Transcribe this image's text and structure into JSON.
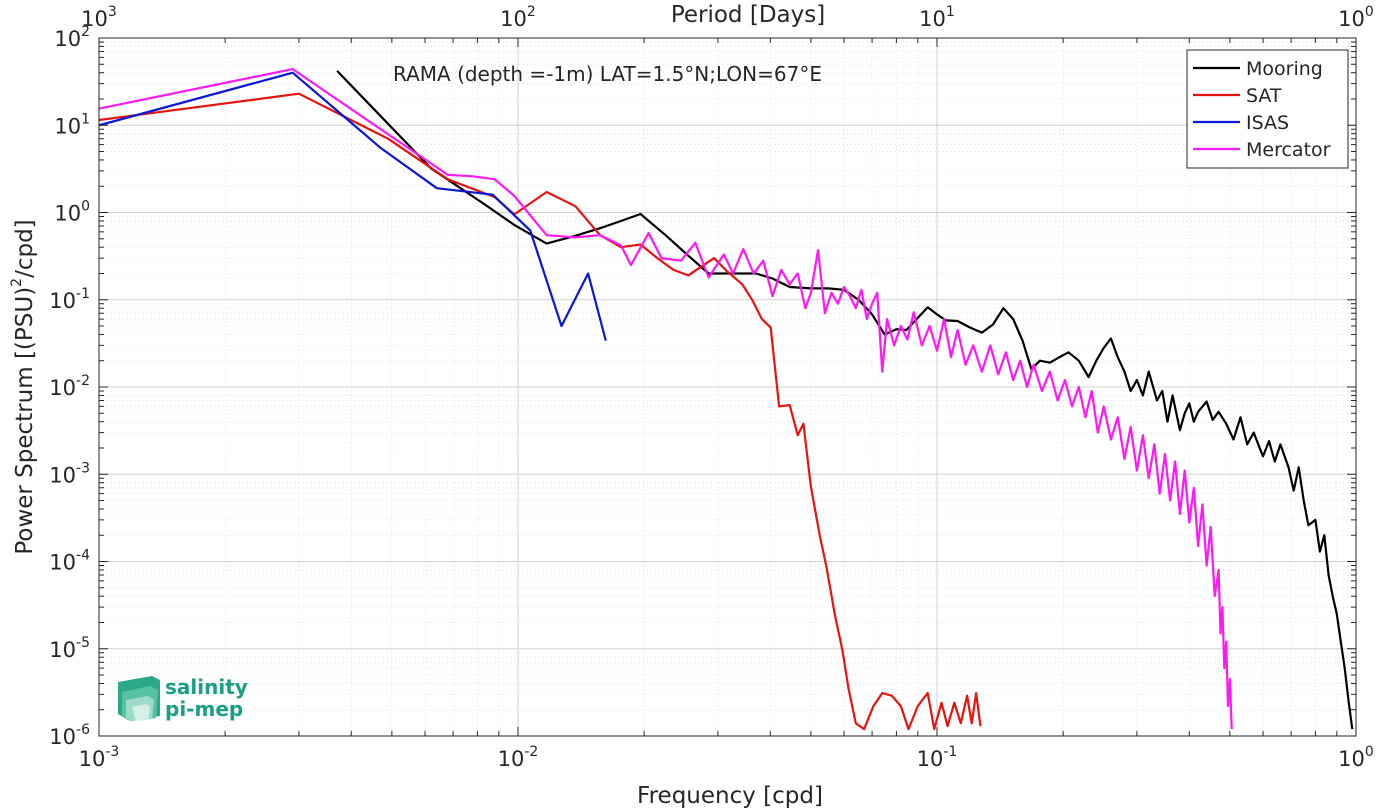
{
  "chart_data": {
    "type": "line",
    "title": "RAMA (depth =-1m) LAT=1.5°N;LON=67°E",
    "xlabel": "Frequency [cpd]",
    "ylabel_main": "Power Spectrum [(PSU)",
    "ylabel_sup": "2",
    "ylabel_tail": "/cpd]",
    "top_xlabel": "Period [Days]",
    "x_scale": "log",
    "y_scale": "log",
    "xlim": [
      0.001,
      1
    ],
    "ylim": [
      1e-06,
      100
    ],
    "grid": true,
    "legend_position": "top-right",
    "x_ticks": [
      {
        "base": "10",
        "exp": "-3",
        "value": 0.001
      },
      {
        "base": "10",
        "exp": "-2",
        "value": 0.01
      },
      {
        "base": "10",
        "exp": "-1",
        "value": 0.1
      },
      {
        "base": "10",
        "exp": "0",
        "value": 1
      }
    ],
    "top_ticks": [
      {
        "base": "10",
        "exp": "3",
        "value": 0.001
      },
      {
        "base": "10",
        "exp": "2",
        "value": 0.01
      },
      {
        "base": "10",
        "exp": "1",
        "value": 0.1
      },
      {
        "base": "10",
        "exp": "0",
        "value": 1
      }
    ],
    "y_ticks": [
      {
        "base": "10",
        "exp": "-6",
        "value": 1e-06
      },
      {
        "base": "10",
        "exp": "-5",
        "value": 1e-05
      },
      {
        "base": "10",
        "exp": "-4",
        "value": 0.0001
      },
      {
        "base": "10",
        "exp": "-3",
        "value": 0.001
      },
      {
        "base": "10",
        "exp": "-2",
        "value": 0.01
      },
      {
        "base": "10",
        "exp": "-1",
        "value": 0.1
      },
      {
        "base": "10",
        "exp": "0",
        "value": 1
      },
      {
        "base": "10",
        "exp": "1",
        "value": 10
      },
      {
        "base": "10",
        "exp": "2",
        "value": 100
      }
    ],
    "series": [
      {
        "name": "Mooring",
        "color": "#000000",
        "points": [
          [
            0.0037,
            42
          ],
          [
            0.0062,
            3.2
          ],
          [
            0.0083,
            1.25
          ],
          [
            0.0098,
            0.72
          ],
          [
            0.0117,
            0.44
          ],
          [
            0.0137,
            0.54
          ],
          [
            0.0157,
            0.66
          ],
          [
            0.0176,
            0.8
          ],
          [
            0.0196,
            0.96
          ],
          [
            0.0225,
            0.55
          ],
          [
            0.0255,
            0.32
          ],
          [
            0.0285,
            0.2
          ],
          [
            0.0313,
            0.2
          ],
          [
            0.0343,
            0.2
          ],
          [
            0.037,
            0.2
          ],
          [
            0.0405,
            0.175
          ],
          [
            0.0445,
            0.14
          ],
          [
            0.05,
            0.135
          ],
          [
            0.055,
            0.135
          ],
          [
            0.06,
            0.13
          ],
          [
            0.065,
            0.1
          ],
          [
            0.07,
            0.068
          ],
          [
            0.075,
            0.04
          ],
          [
            0.08,
            0.046
          ],
          [
            0.0845,
            0.045
          ],
          [
            0.09,
            0.062
          ],
          [
            0.095,
            0.082
          ],
          [
            0.1,
            0.068
          ],
          [
            0.105,
            0.058
          ],
          [
            0.112,
            0.057
          ],
          [
            0.12,
            0.048
          ],
          [
            0.128,
            0.042
          ],
          [
            0.136,
            0.052
          ],
          [
            0.144,
            0.08
          ],
          [
            0.152,
            0.06
          ],
          [
            0.16,
            0.034
          ],
          [
            0.168,
            0.016
          ],
          [
            0.176,
            0.02
          ],
          [
            0.186,
            0.019
          ],
          [
            0.196,
            0.022
          ],
          [
            0.206,
            0.025
          ],
          [
            0.218,
            0.02
          ],
          [
            0.23,
            0.013
          ],
          [
            0.24,
            0.02
          ],
          [
            0.25,
            0.028
          ],
          [
            0.26,
            0.036
          ],
          [
            0.27,
            0.022
          ],
          [
            0.28,
            0.015
          ],
          [
            0.29,
            0.009
          ],
          [
            0.3,
            0.012
          ],
          [
            0.31,
            0.008
          ],
          [
            0.32,
            0.015
          ],
          [
            0.335,
            0.007
          ],
          [
            0.345,
            0.009
          ],
          [
            0.355,
            0.004
          ],
          [
            0.365,
            0.008
          ],
          [
            0.38,
            0.0032
          ],
          [
            0.39,
            0.005
          ],
          [
            0.4,
            0.0065
          ],
          [
            0.41,
            0.004
          ],
          [
            0.42,
            0.0052
          ],
          [
            0.44,
            0.0068
          ],
          [
            0.455,
            0.0042
          ],
          [
            0.47,
            0.0052
          ],
          [
            0.49,
            0.0038
          ],
          [
            0.51,
            0.0025
          ],
          [
            0.53,
            0.0045
          ],
          [
            0.55,
            0.0022
          ],
          [
            0.57,
            0.003
          ],
          [
            0.6,
            0.0016
          ],
          [
            0.62,
            0.0024
          ],
          [
            0.64,
            0.0014
          ],
          [
            0.66,
            0.0022
          ],
          [
            0.69,
            0.0012
          ],
          [
            0.71,
            0.00065
          ],
          [
            0.73,
            0.0012
          ],
          [
            0.75,
            0.0005
          ],
          [
            0.77,
            0.00026
          ],
          [
            0.8,
            0.0003
          ],
          [
            0.82,
            0.00013
          ],
          [
            0.84,
            0.0002
          ],
          [
            0.86,
            7e-05
          ],
          [
            0.88,
            4e-05
          ],
          [
            0.9,
            2.5e-05
          ],
          [
            0.92,
            1.2e-05
          ],
          [
            0.94,
            6e-06
          ],
          [
            0.96,
            2.5e-06
          ],
          [
            0.98,
            1.2e-06
          ]
        ]
      },
      {
        "name": "SAT",
        "color": "#e8120f",
        "points": [
          [
            0.001,
            11.5
          ],
          [
            0.003,
            23
          ],
          [
            0.0049,
            7
          ],
          [
            0.0068,
            2.4
          ],
          [
            0.0088,
            1.5
          ],
          [
            0.0098,
            0.95
          ],
          [
            0.0117,
            1.72
          ],
          [
            0.0137,
            1.18
          ],
          [
            0.0157,
            0.55
          ],
          [
            0.0176,
            0.4
          ],
          [
            0.0196,
            0.43
          ],
          [
            0.0215,
            0.3
          ],
          [
            0.0235,
            0.22
          ],
          [
            0.0255,
            0.19
          ],
          [
            0.0274,
            0.24
          ],
          [
            0.0294,
            0.3
          ],
          [
            0.0313,
            0.22
          ],
          [
            0.0343,
            0.15
          ],
          [
            0.0362,
            0.1
          ],
          [
            0.0382,
            0.06
          ],
          [
            0.0401,
            0.048
          ],
          [
            0.042,
            0.006
          ],
          [
            0.0445,
            0.0062
          ],
          [
            0.0465,
            0.0028
          ],
          [
            0.048,
            0.0038
          ],
          [
            0.05,
            0.00072
          ],
          [
            0.0525,
            0.0002
          ],
          [
            0.0545,
            8.5e-05
          ],
          [
            0.057,
            2.5e-05
          ],
          [
            0.0595,
            9.5e-06
          ],
          [
            0.0615,
            3.5e-06
          ],
          [
            0.064,
            1.4e-06
          ],
          [
            0.067,
            1.2e-06
          ],
          [
            0.0705,
            2.2e-06
          ],
          [
            0.074,
            3.1e-06
          ],
          [
            0.078,
            2.9e-06
          ],
          [
            0.082,
            2.2e-06
          ],
          [
            0.0855,
            1.2e-06
          ],
          [
            0.09,
            2.2e-06
          ],
          [
            0.095,
            3.1e-06
          ],
          [
            0.0985,
            1.2e-06
          ],
          [
            0.1025,
            2.4e-06
          ],
          [
            0.106,
            1.3e-06
          ],
          [
            0.11,
            2.4e-06
          ],
          [
            0.114,
            1.4e-06
          ],
          [
            0.118,
            2.9e-06
          ],
          [
            0.121,
            1.4e-06
          ],
          [
            0.124,
            3.1e-06
          ],
          [
            0.127,
            1.3e-06
          ]
        ]
      },
      {
        "name": "ISAS",
        "color": "#0a16d8",
        "points": [
          [
            0.001,
            10
          ],
          [
            0.0029,
            40
          ],
          [
            0.0047,
            5.5
          ],
          [
            0.0064,
            1.9
          ],
          [
            0.0087,
            1.6
          ],
          [
            0.0107,
            0.62
          ],
          [
            0.0127,
            0.05
          ],
          [
            0.0147,
            0.2
          ],
          [
            0.0162,
            0.034
          ]
        ]
      },
      {
        "name": "Mercator",
        "color": "#ff18f5",
        "points": [
          [
            0.001,
            15.5
          ],
          [
            0.0029,
            44
          ],
          [
            0.0047,
            9
          ],
          [
            0.0068,
            2.7
          ],
          [
            0.0078,
            2.6
          ],
          [
            0.0088,
            2.4
          ],
          [
            0.0098,
            1.55
          ],
          [
            0.0117,
            0.55
          ],
          [
            0.0137,
            0.52
          ],
          [
            0.0157,
            0.55
          ],
          [
            0.0176,
            0.42
          ],
          [
            0.0186,
            0.25
          ],
          [
            0.0205,
            0.58
          ],
          [
            0.022,
            0.3
          ],
          [
            0.0245,
            0.28
          ],
          [
            0.0265,
            0.45
          ],
          [
            0.0285,
            0.18
          ],
          [
            0.031,
            0.33
          ],
          [
            0.0326,
            0.2
          ],
          [
            0.0345,
            0.38
          ],
          [
            0.0365,
            0.2
          ],
          [
            0.0385,
            0.28
          ],
          [
            0.0405,
            0.11
          ],
          [
            0.0425,
            0.22
          ],
          [
            0.0445,
            0.15
          ],
          [
            0.0465,
            0.2
          ],
          [
            0.0485,
            0.08
          ],
          [
            0.05,
            0.12
          ],
          [
            0.052,
            0.37
          ],
          [
            0.054,
            0.07
          ],
          [
            0.056,
            0.12
          ],
          [
            0.058,
            0.09
          ],
          [
            0.06,
            0.14
          ],
          [
            0.062,
            0.11
          ],
          [
            0.064,
            0.08
          ],
          [
            0.066,
            0.13
          ],
          [
            0.068,
            0.06
          ],
          [
            0.07,
            0.09
          ],
          [
            0.072,
            0.12
          ],
          [
            0.074,
            0.015
          ],
          [
            0.076,
            0.06
          ],
          [
            0.079,
            0.03
          ],
          [
            0.082,
            0.05
          ],
          [
            0.085,
            0.035
          ],
          [
            0.088,
            0.072
          ],
          [
            0.092,
            0.03
          ],
          [
            0.096,
            0.05
          ],
          [
            0.1,
            0.026
          ],
          [
            0.104,
            0.06
          ],
          [
            0.108,
            0.022
          ],
          [
            0.112,
            0.045
          ],
          [
            0.117,
            0.018
          ],
          [
            0.122,
            0.03
          ],
          [
            0.128,
            0.015
          ],
          [
            0.134,
            0.03
          ],
          [
            0.14,
            0.014
          ],
          [
            0.146,
            0.025
          ],
          [
            0.152,
            0.012
          ],
          [
            0.158,
            0.02
          ],
          [
            0.164,
            0.01
          ],
          [
            0.17,
            0.018
          ],
          [
            0.178,
            0.009
          ],
          [
            0.186,
            0.015
          ],
          [
            0.194,
            0.007
          ],
          [
            0.202,
            0.012
          ],
          [
            0.21,
            0.006
          ],
          [
            0.218,
            0.01
          ],
          [
            0.226,
            0.0045
          ],
          [
            0.234,
            0.009
          ],
          [
            0.242,
            0.003
          ],
          [
            0.25,
            0.006
          ],
          [
            0.26,
            0.0025
          ],
          [
            0.27,
            0.0045
          ],
          [
            0.28,
            0.0015
          ],
          [
            0.29,
            0.0035
          ],
          [
            0.3,
            0.0011
          ],
          [
            0.31,
            0.0028
          ],
          [
            0.32,
            0.0009
          ],
          [
            0.33,
            0.0022
          ],
          [
            0.34,
            0.0006
          ],
          [
            0.35,
            0.0017
          ],
          [
            0.36,
            0.0005
          ],
          [
            0.37,
            0.0014
          ],
          [
            0.38,
            0.00035
          ],
          [
            0.39,
            0.0011
          ],
          [
            0.4,
            0.00028
          ],
          [
            0.41,
            0.0007
          ],
          [
            0.42,
            0.00015
          ],
          [
            0.43,
            0.00045
          ],
          [
            0.44,
            9e-05
          ],
          [
            0.45,
            0.00025
          ],
          [
            0.46,
            4e-05
          ],
          [
            0.47,
            8e-05
          ],
          [
            0.475,
            1.5e-05
          ],
          [
            0.48,
            3e-05
          ],
          [
            0.485,
            6e-06
          ],
          [
            0.49,
            1.2e-05
          ],
          [
            0.495,
            2.2e-06
          ],
          [
            0.5,
            4.5e-06
          ],
          [
            0.505,
            1.2e-06
          ]
        ]
      }
    ]
  },
  "logo": {
    "line1": "salinity",
    "line2": "pi-mep",
    "color": "#1a9e86"
  }
}
